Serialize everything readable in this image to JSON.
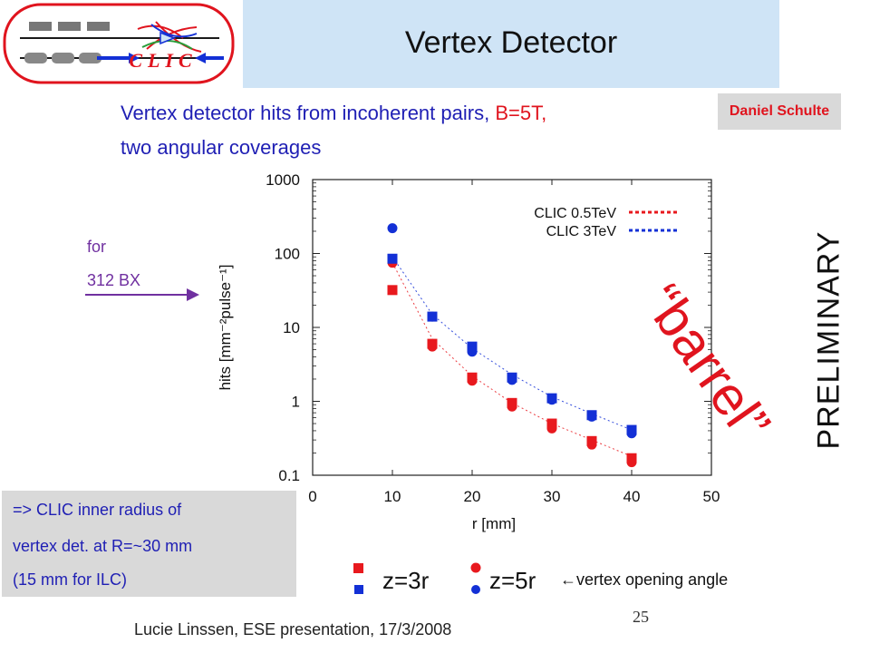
{
  "slide": {
    "title": "Vertex Detector",
    "logo_text": "CLIC",
    "subtitle_line1_main": "Vertex detector hits from incoherent pairs,",
    "subtitle_line1_field": "B=5T,",
    "subtitle_line2": "two angular coverages",
    "author": "Daniel Schulte",
    "annotation_for": "for",
    "annotation_bx": "312 BX",
    "barrel_label": "“barrel”",
    "preliminary": "PRELIMINARY",
    "note_lines": [
      "=> CLIC inner radius of",
      "vertex det. at R=~30 mm",
      "(15 mm for ILC)"
    ],
    "marker_legend": {
      "square_label": "z=3r",
      "circle_label": "z=5r",
      "arrow_note": "←vertex opening angle"
    },
    "page_number": "25",
    "footer": "Lucie Linssen, ESE presentation, 17/3/2008"
  },
  "colors": {
    "title_bar": "#cfe4f6",
    "text_blue": "#1f1fb4",
    "accent_red": "#e0141e",
    "purple": "#7030a0",
    "grey_box": "#d9d9d9",
    "series_red": "#e8191e",
    "series_blue": "#1330d6"
  },
  "chart_data": {
    "type": "scatter",
    "title": "",
    "xlabel": "r [mm]",
    "ylabel": "hits [mm⁻²pulse⁻¹]",
    "xlim": [
      0,
      50
    ],
    "ylim": [
      0.1,
      1000
    ],
    "yscale": "log",
    "x_ticks": [
      0,
      10,
      20,
      30,
      40,
      50
    ],
    "y_ticks": [
      0.1,
      1,
      10,
      100,
      1000
    ],
    "y_tick_labels": [
      "0.1",
      "1",
      "10",
      "100",
      "1000"
    ],
    "grid": false,
    "legend_position": "top-right",
    "series": [
      {
        "name": "CLIC 0.5TeV",
        "color": "#e8191e",
        "line_style": "dotted",
        "fit_curve": [
          [
            10,
            75
          ],
          [
            15,
            7
          ],
          [
            20,
            2.2
          ],
          [
            25,
            0.95
          ],
          [
            30,
            0.5
          ],
          [
            35,
            0.3
          ],
          [
            40,
            0.18
          ]
        ],
        "points_square": [
          [
            10,
            32
          ],
          [
            15,
            6
          ],
          [
            20,
            2.1
          ],
          [
            25,
            0.95
          ],
          [
            30,
            0.5
          ],
          [
            35,
            0.29
          ],
          [
            40,
            0.17
          ]
        ],
        "points_circle": [
          [
            10,
            75
          ],
          [
            15,
            5.5
          ],
          [
            20,
            1.9
          ],
          [
            25,
            0.85
          ],
          [
            30,
            0.43
          ],
          [
            35,
            0.26
          ],
          [
            40,
            0.15
          ]
        ]
      },
      {
        "name": "CLIC 3TeV",
        "color": "#1330d6",
        "line_style": "dotted",
        "fit_curve": [
          [
            10,
            90
          ],
          [
            15,
            15
          ],
          [
            20,
            5.2
          ],
          [
            25,
            2.3
          ],
          [
            30,
            1.15
          ],
          [
            35,
            0.68
          ],
          [
            40,
            0.41
          ]
        ],
        "points_square": [
          [
            10,
            85
          ],
          [
            15,
            14
          ],
          [
            20,
            5.5
          ],
          [
            25,
            2.1
          ],
          [
            30,
            1.1
          ],
          [
            35,
            0.65
          ],
          [
            40,
            0.41
          ]
        ],
        "points_circle": [
          [
            10,
            220
          ],
          [
            15,
            14
          ],
          [
            20,
            4.7
          ],
          [
            25,
            1.95
          ],
          [
            30,
            1.05
          ],
          [
            35,
            0.62
          ],
          [
            40,
            0.37
          ]
        ]
      }
    ]
  }
}
